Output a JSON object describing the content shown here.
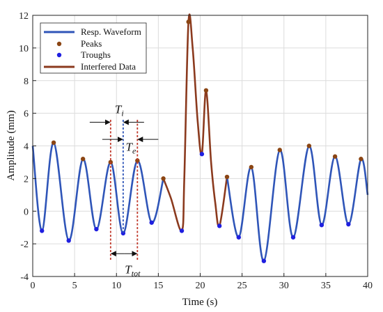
{
  "chart_data": {
    "type": "line",
    "xlabel": "Time (s)",
    "ylabel": "Amplitude (mm)",
    "xlim": [
      0,
      40
    ],
    "ylim": [
      -4,
      12
    ],
    "xticks": [
      0,
      5,
      10,
      15,
      20,
      25,
      30,
      35,
      40
    ],
    "yticks": [
      -4,
      -2,
      0,
      2,
      4,
      6,
      8,
      10,
      12
    ],
    "grid": true,
    "legend_position": "top-left",
    "legend": [
      {
        "label": "Resp. Waveform",
        "kind": "line",
        "color": "#2f55b8"
      },
      {
        "label": "Peaks",
        "kind": "marker",
        "color": "#8b4513"
      },
      {
        "label": "Troughs",
        "kind": "marker",
        "color": "#1f1fe0"
      },
      {
        "label": "Interfered Data",
        "kind": "line",
        "color": "#8b3a1e"
      }
    ],
    "series": [
      {
        "label": "Resp. Waveform",
        "color": "#2f55b8",
        "points": [
          [
            0.0,
            4.0
          ],
          [
            1.1,
            -1.2
          ],
          [
            2.5,
            4.2
          ],
          [
            4.3,
            -1.8
          ],
          [
            6.0,
            3.2
          ],
          [
            7.6,
            -1.1
          ],
          [
            9.3,
            3.0
          ],
          [
            10.8,
            -1.35
          ],
          [
            12.5,
            3.1
          ],
          [
            14.2,
            -0.7
          ],
          [
            15.6,
            2.0
          ]
        ]
      },
      {
        "label": "Interfered Data",
        "color": "#8b3a1e",
        "points": [
          [
            15.6,
            2.0
          ],
          [
            16.5,
            0.8
          ],
          [
            17.8,
            -1.2
          ],
          [
            18.1,
            2.0
          ],
          [
            18.6,
            11.6
          ],
          [
            19.1,
            10.0
          ],
          [
            19.7,
            5.5
          ],
          [
            20.2,
            3.5
          ],
          [
            20.7,
            7.4
          ],
          [
            21.3,
            3.0
          ],
          [
            21.8,
            0.5
          ],
          [
            22.3,
            -0.9
          ],
          [
            23.2,
            2.1
          ]
        ]
      },
      {
        "label": "Resp. Waveform",
        "color": "#2f55b8",
        "points": [
          [
            23.2,
            2.1
          ],
          [
            24.6,
            -1.6
          ],
          [
            26.1,
            2.7
          ],
          [
            27.6,
            -3.05
          ],
          [
            29.5,
            3.75
          ],
          [
            31.1,
            -1.6
          ],
          [
            33.0,
            4.0
          ],
          [
            34.5,
            -0.85
          ],
          [
            36.1,
            3.35
          ],
          [
            37.7,
            -0.8
          ],
          [
            39.2,
            3.2
          ],
          [
            40.0,
            1.0
          ]
        ]
      }
    ],
    "peaks": [
      [
        2.5,
        4.2
      ],
      [
        6.0,
        3.2
      ],
      [
        9.3,
        3.0
      ],
      [
        12.5,
        3.1
      ],
      [
        15.6,
        2.0
      ],
      [
        18.6,
        11.6
      ],
      [
        20.7,
        7.4
      ],
      [
        23.2,
        2.1
      ],
      [
        26.1,
        2.7
      ],
      [
        29.5,
        3.75
      ],
      [
        33.0,
        4.0
      ],
      [
        36.1,
        3.35
      ],
      [
        39.2,
        3.2
      ]
    ],
    "troughs": [
      [
        1.1,
        -1.2
      ],
      [
        4.3,
        -1.8
      ],
      [
        7.6,
        -1.1
      ],
      [
        10.8,
        -1.35
      ],
      [
        14.2,
        -0.7
      ],
      [
        17.8,
        -1.2
      ],
      [
        20.2,
        3.5
      ],
      [
        22.3,
        -0.9
      ],
      [
        24.6,
        -1.6
      ],
      [
        27.6,
        -3.05
      ],
      [
        31.1,
        -1.6
      ],
      [
        34.5,
        -0.85
      ],
      [
        37.7,
        -0.8
      ]
    ],
    "annotations": {
      "vlines": [
        {
          "x": 9.3,
          "color": "#c0392b",
          "y_from": -3.0,
          "y_to": 5.6
        },
        {
          "x": 10.8,
          "color": "#2f55b8",
          "y_from": -1.35,
          "y_to": 5.6
        },
        {
          "x": 12.5,
          "color": "#c0392b",
          "y_from": -3.0,
          "y_to": 5.6
        }
      ],
      "Ti": {
        "main": "T",
        "sub": "i",
        "x": 9.8,
        "y": 6.0,
        "from": 9.3,
        "to": 10.8,
        "arrow_y": 5.45
      },
      "Te": {
        "main": "T",
        "sub": "e",
        "x": 11.1,
        "y": 3.7,
        "from": 10.8,
        "to": 12.5,
        "arrow_y": 4.4
      },
      "Ttot": {
        "main": "T",
        "sub": "tot",
        "x": 11.0,
        "y": -3.8,
        "from": 9.3,
        "to": 12.5,
        "arrow_y": -2.6
      }
    }
  }
}
